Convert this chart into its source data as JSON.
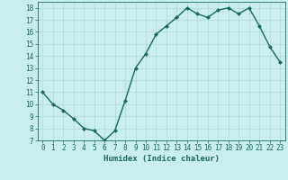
{
  "x": [
    0,
    1,
    2,
    3,
    4,
    5,
    6,
    7,
    8,
    9,
    10,
    11,
    12,
    13,
    14,
    15,
    16,
    17,
    18,
    19,
    20,
    21,
    22,
    23
  ],
  "y": [
    11.0,
    10.0,
    9.5,
    8.8,
    8.0,
    7.8,
    7.0,
    7.8,
    10.3,
    13.0,
    14.2,
    15.8,
    16.5,
    17.2,
    18.0,
    17.5,
    17.2,
    17.8,
    18.0,
    17.5,
    18.0,
    16.5,
    14.8,
    13.5
  ],
  "line_color": "#1a6b5a",
  "marker": "D",
  "marker_size": 2.0,
  "bg_color": "#c8eef0",
  "grid_color": "#b0d8d4",
  "xlabel": "Humidex (Indice chaleur)",
  "xlim": [
    -0.5,
    23.5
  ],
  "ylim": [
    7,
    18.5
  ],
  "yticks": [
    7,
    8,
    9,
    10,
    11,
    12,
    13,
    14,
    15,
    16,
    17,
    18
  ],
  "xticks": [
    0,
    1,
    2,
    3,
    4,
    5,
    6,
    7,
    8,
    9,
    10,
    11,
    12,
    13,
    14,
    15,
    16,
    17,
    18,
    19,
    20,
    21,
    22,
    23
  ],
  "xlabel_fontsize": 6.5,
  "tick_fontsize": 5.5,
  "line_width": 1.0
}
